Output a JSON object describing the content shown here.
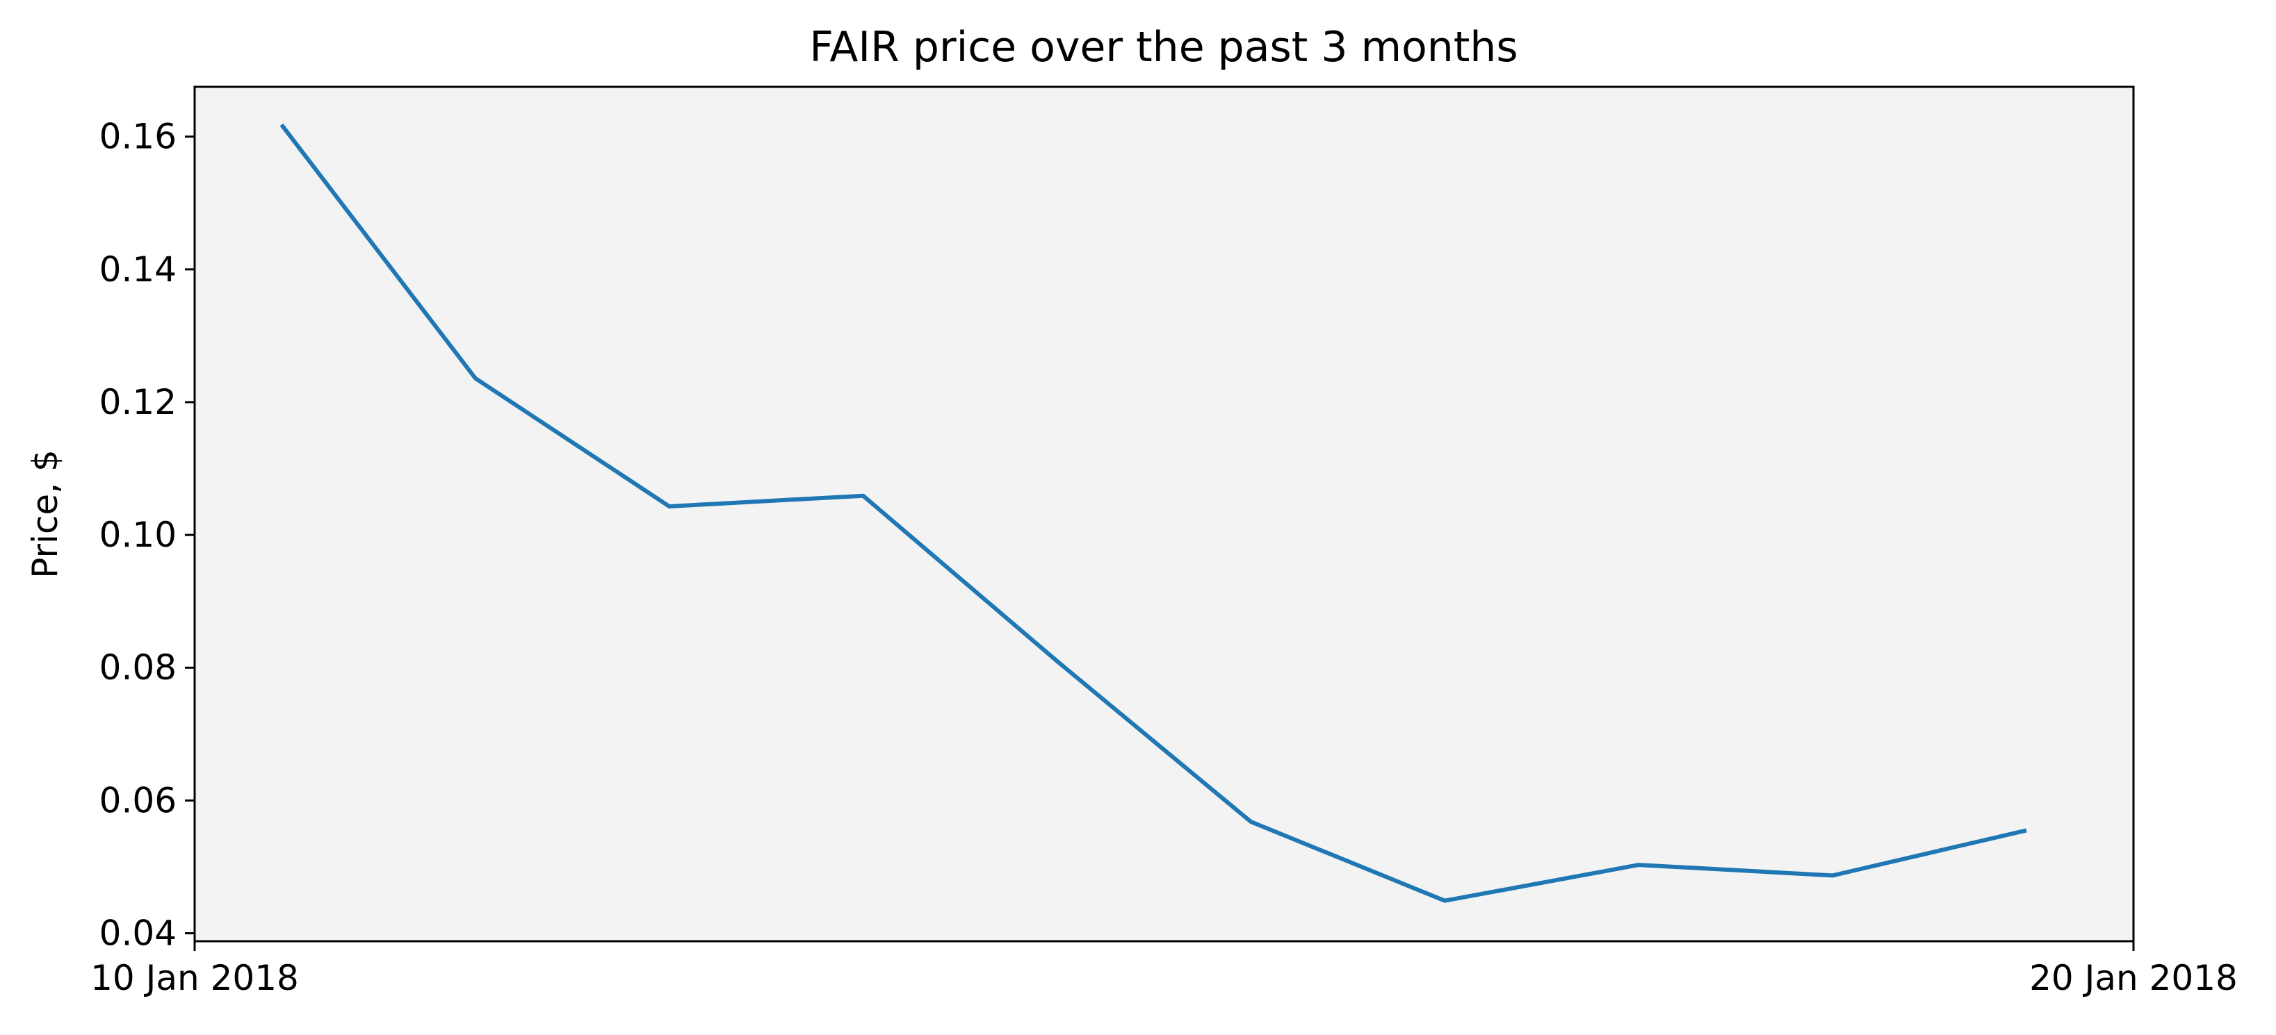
{
  "chart_data": {
    "type": "line",
    "title": "FAIR price over the past 3 months",
    "xlabel": "",
    "ylabel": "Price, $",
    "x_tick_labels": [
      "10 Jan 2018",
      "20 Jan 2018"
    ],
    "y_ticks": [
      0.04,
      0.06,
      0.08,
      0.1,
      0.12,
      0.14,
      0.16
    ],
    "y_tick_labels": [
      "0.04",
      "0.06",
      "0.08",
      "0.10",
      "0.12",
      "0.14",
      "0.16"
    ],
    "xlim": [
      "2018-01-10",
      "2018-01-20"
    ],
    "ylim": [
      0.0388,
      0.1675
    ],
    "grid": false,
    "colors": {
      "line": "#1f77b4",
      "plot_background": "#f3f3f3"
    },
    "series": [
      {
        "x": [
          "2018-01-10T10:45",
          "2018-01-11T10:45",
          "2018-01-12T10:45",
          "2018-01-13T10:45",
          "2018-01-14T10:45",
          "2018-01-15T10:45",
          "2018-01-16T10:45",
          "2018-01-17T10:45",
          "2018-01-18T10:45",
          "2018-01-19T10:45"
        ],
        "values": [
          0.1618,
          0.1236,
          0.1043,
          0.1059,
          0.081,
          0.0568,
          0.0449,
          0.0503,
          0.0487,
          0.0555
        ]
      }
    ]
  }
}
